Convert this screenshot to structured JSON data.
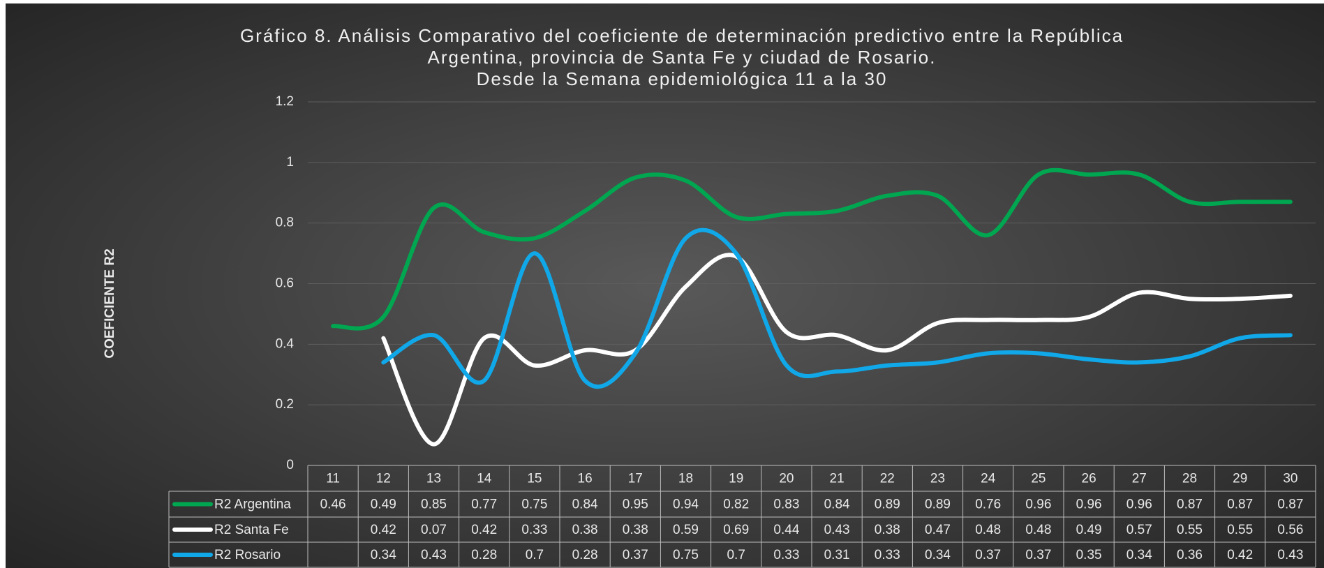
{
  "chart_data": {
    "type": "line",
    "title": [
      "Gráfico 8. Análisis Comparativo del coeficiente de determinación predictivo entre la República",
      "Argentina, provincia de Santa Fe y ciudad de Rosario.",
      "Desde la Semana  epidemiológica 11 a la 30"
    ],
    "y_label": "COEFICIENTE R2",
    "categories": [
      "11",
      "12",
      "13",
      "14",
      "15",
      "16",
      "17",
      "18",
      "19",
      "20",
      "21",
      "22",
      "23",
      "24",
      "25",
      "26",
      "27",
      "28",
      "29",
      "30"
    ],
    "series": [
      {
        "name": "R2 Argentina",
        "color": "#00a650",
        "values": [
          0.46,
          0.49,
          0.85,
          0.77,
          0.75,
          0.84,
          0.95,
          0.94,
          0.82,
          0.83,
          0.84,
          0.89,
          0.89,
          0.76,
          0.96,
          0.96,
          0.96,
          0.87,
          0.87,
          0.87
        ]
      },
      {
        "name": "R2  Santa Fe",
        "color": "#ffffff",
        "values": [
          null,
          0.42,
          0.07,
          0.42,
          0.33,
          0.38,
          0.38,
          0.59,
          0.69,
          0.44,
          0.43,
          0.38,
          0.47,
          0.48,
          0.48,
          0.49,
          0.57,
          0.55,
          0.55,
          0.56
        ]
      },
      {
        "name": "R2 Rosario",
        "color": "#10a8e8",
        "values": [
          null,
          0.34,
          0.43,
          0.28,
          0.7,
          0.28,
          0.37,
          0.75,
          0.7,
          0.33,
          0.31,
          0.33,
          0.34,
          0.37,
          0.37,
          0.35,
          0.34,
          0.36,
          0.42,
          0.43
        ]
      }
    ],
    "ylim": [
      0,
      1.2
    ],
    "yticks": [
      0,
      0.2,
      0.4,
      0.6,
      0.8,
      1,
      1.2
    ],
    "grid": true
  }
}
